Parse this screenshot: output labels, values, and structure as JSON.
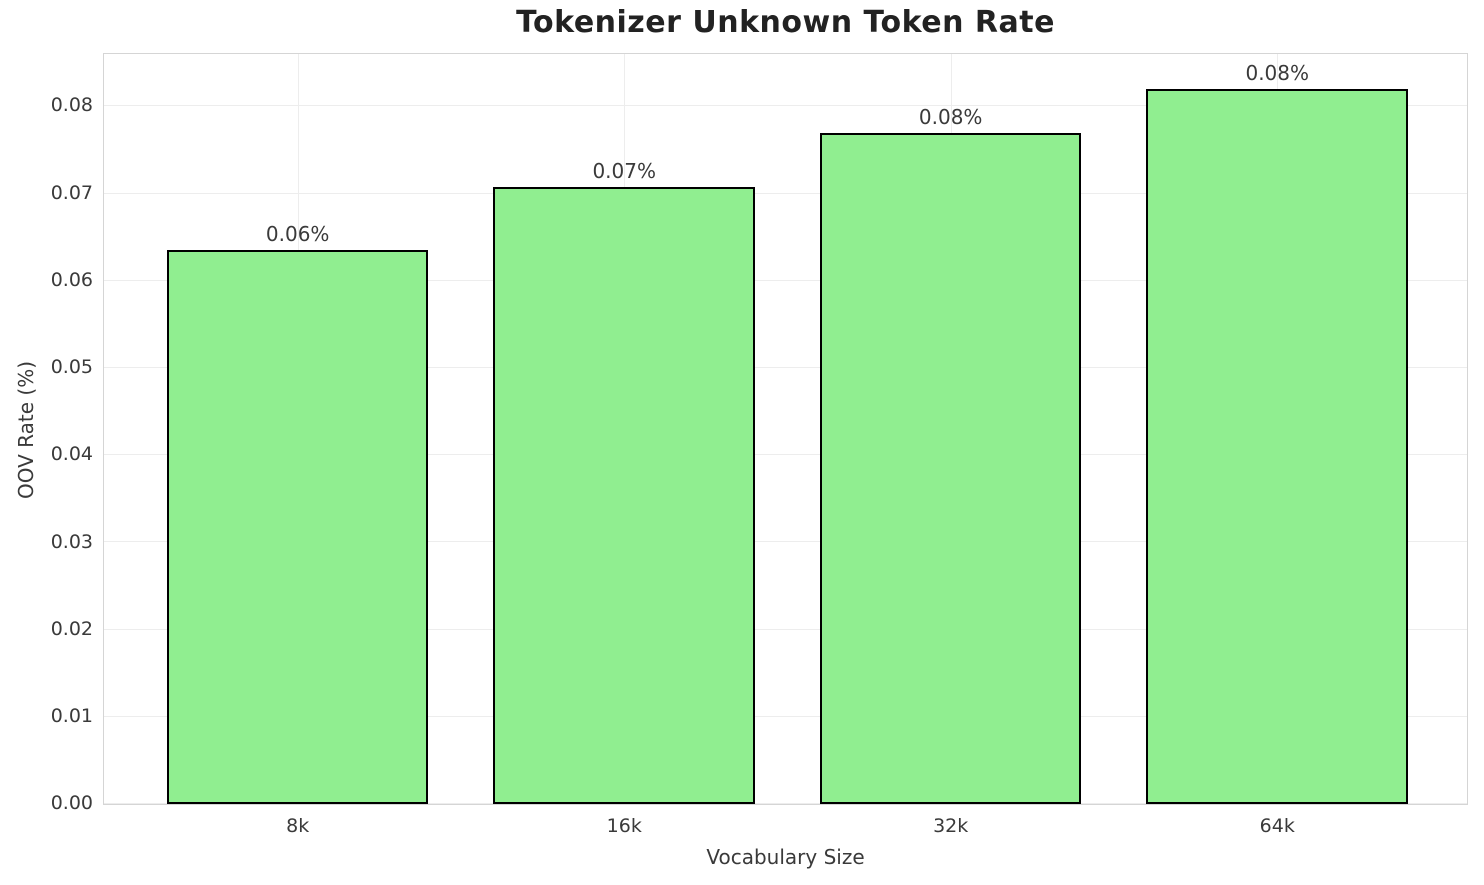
{
  "chart_data": {
    "type": "bar",
    "title": "Tokenizer Unknown Token Rate",
    "xlabel": "Vocabulary Size",
    "ylabel": "OOV Rate (%)",
    "categories": [
      "8k",
      "16k",
      "32k",
      "64k"
    ],
    "values": [
      0.0635,
      0.0707,
      0.077,
      0.082
    ],
    "bar_labels": [
      "0.06%",
      "0.07%",
      "0.08%",
      "0.08%"
    ],
    "yticks": [
      {
        "value": 0.0,
        "label": "0.00"
      },
      {
        "value": 0.01,
        "label": "0.01"
      },
      {
        "value": 0.02,
        "label": "0.02"
      },
      {
        "value": 0.03,
        "label": "0.03"
      },
      {
        "value": 0.04,
        "label": "0.04"
      },
      {
        "value": 0.05,
        "label": "0.05"
      },
      {
        "value": 0.06,
        "label": "0.06"
      },
      {
        "value": 0.07,
        "label": "0.07"
      },
      {
        "value": 0.08,
        "label": "0.08"
      }
    ],
    "ylim": [
      0,
      0.086
    ],
    "grid": true,
    "legend": null,
    "colors": {
      "bar_fill": "#90EE90",
      "bar_edge": "#000000",
      "grid": "#ededed",
      "spine": "#d5d5d5",
      "title_text": "#222222",
      "tick_text": "#3a3a3a"
    },
    "layout": {
      "centers_frac": [
        0.1421,
        0.3817,
        0.6212,
        0.8608
      ],
      "bar_width_frac": 0.1919,
      "legend_position": "none"
    }
  }
}
